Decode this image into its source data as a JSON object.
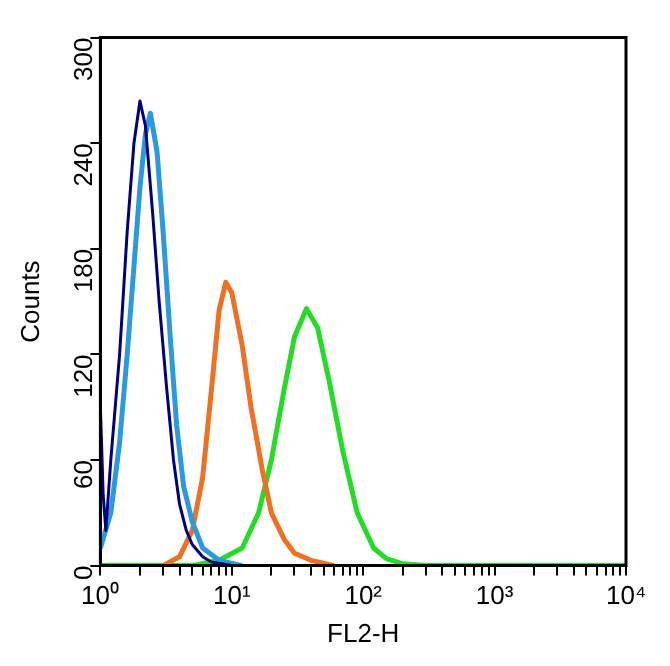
{
  "chart_data": {
    "type": "line",
    "xlabel": "FL2-H",
    "ylabel": "Counts",
    "log": "x",
    "xlim": [
      1,
      10000
    ],
    "ylim": [
      0,
      300
    ],
    "xticks": [
      {
        "value": 1,
        "label": "10⁰"
      },
      {
        "value": 2,
        "label": null
      },
      {
        "value": 3,
        "label": null
      },
      {
        "value": 4,
        "label": null
      },
      {
        "value": 5,
        "label": null
      },
      {
        "value": 6,
        "label": null
      },
      {
        "value": 7,
        "label": null
      },
      {
        "value": 8,
        "label": null
      },
      {
        "value": 9,
        "label": null
      },
      {
        "value": 10,
        "label": "10¹"
      },
      {
        "value": 20,
        "label": null
      },
      {
        "value": 30,
        "label": null
      },
      {
        "value": 40,
        "label": null
      },
      {
        "value": 50,
        "label": null
      },
      {
        "value": 60,
        "label": null
      },
      {
        "value": 70,
        "label": null
      },
      {
        "value": 80,
        "label": null
      },
      {
        "value": 90,
        "label": null
      },
      {
        "value": 100,
        "label": "10²"
      },
      {
        "value": 200,
        "label": null
      },
      {
        "value": 300,
        "label": null
      },
      {
        "value": 400,
        "label": null
      },
      {
        "value": 500,
        "label": null
      },
      {
        "value": 600,
        "label": null
      },
      {
        "value": 700,
        "label": null
      },
      {
        "value": 800,
        "label": null
      },
      {
        "value": 900,
        "label": null
      },
      {
        "value": 1000,
        "label": "10³"
      },
      {
        "value": 2000,
        "label": null
      },
      {
        "value": 3000,
        "label": null
      },
      {
        "value": 4000,
        "label": null
      },
      {
        "value": 5000,
        "label": null
      },
      {
        "value": 6000,
        "label": null
      },
      {
        "value": 7000,
        "label": null
      },
      {
        "value": 8000,
        "label": null
      },
      {
        "value": 9000,
        "label": null
      },
      {
        "value": 10000,
        "label": "10⁴"
      }
    ],
    "yticks": [
      0,
      60,
      120,
      180,
      240,
      300
    ],
    "grid": false,
    "legend": false,
    "marker": "none",
    "line_style": "solid",
    "series": [
      {
        "color": "#000080",
        "x": [
          1,
          1.05,
          1.1,
          1.2,
          1.4,
          1.6,
          1.8,
          2,
          2.2,
          2.5,
          2.8,
          3.2,
          3.6,
          4,
          4.5,
          5,
          6,
          7,
          10
        ],
        "values": [
          90,
          40,
          20,
          60,
          120,
          190,
          240,
          264,
          250,
          200,
          150,
          100,
          60,
          35,
          20,
          12,
          5,
          2,
          0
        ]
      },
      {
        "color": "#2a9ae0",
        "x": [
          1,
          1.2,
          1.4,
          1.6,
          1.8,
          2,
          2.2,
          2.4,
          2.7,
          3,
          3.4,
          3.8,
          4.3,
          5,
          6,
          8,
          12
        ],
        "values": [
          10,
          30,
          70,
          120,
          170,
          215,
          245,
          257,
          235,
          190,
          130,
          80,
          45,
          25,
          10,
          3,
          0
        ]
      },
      {
        "color": "#f07020",
        "x": [
          3,
          4,
          5,
          6,
          7,
          8,
          9,
          10,
          12,
          14,
          17,
          20,
          25,
          30,
          40,
          60
        ],
        "values": [
          0,
          5,
          20,
          50,
          100,
          145,
          161,
          155,
          125,
          90,
          55,
          30,
          15,
          7,
          3,
          0
        ]
      },
      {
        "color": "#22dd22",
        "x": [
          1,
          5,
          8,
          12,
          16,
          20,
          25,
          30,
          37,
          45,
          55,
          70,
          90,
          120,
          150,
          200,
          300,
          10000
        ],
        "values": [
          0,
          0,
          3,
          10,
          30,
          60,
          100,
          130,
          146,
          135,
          105,
          65,
          30,
          10,
          4,
          1,
          0,
          0
        ]
      }
    ]
  }
}
